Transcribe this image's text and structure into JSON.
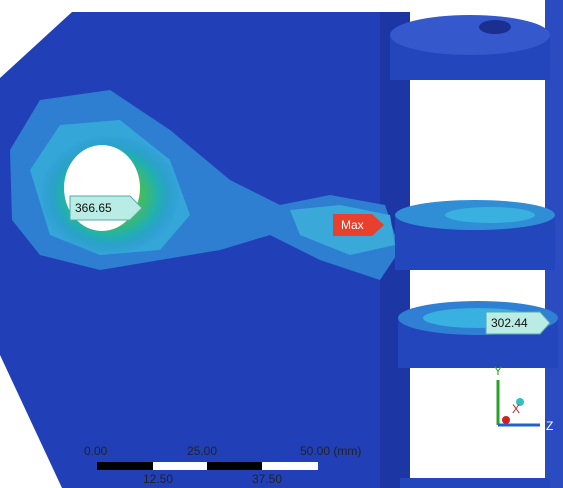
{
  "probes": [
    {
      "label": "366.65"
    },
    {
      "label": "Max"
    },
    {
      "label": "302.44"
    }
  ],
  "scale_bar": {
    "top_labels": [
      "0.00",
      "25.00",
      "50.00 (mm)"
    ],
    "bottom_labels": [
      "12.50",
      "37.50"
    ]
  },
  "triad": {
    "y": "Y",
    "x": "X",
    "z": "Z"
  }
}
